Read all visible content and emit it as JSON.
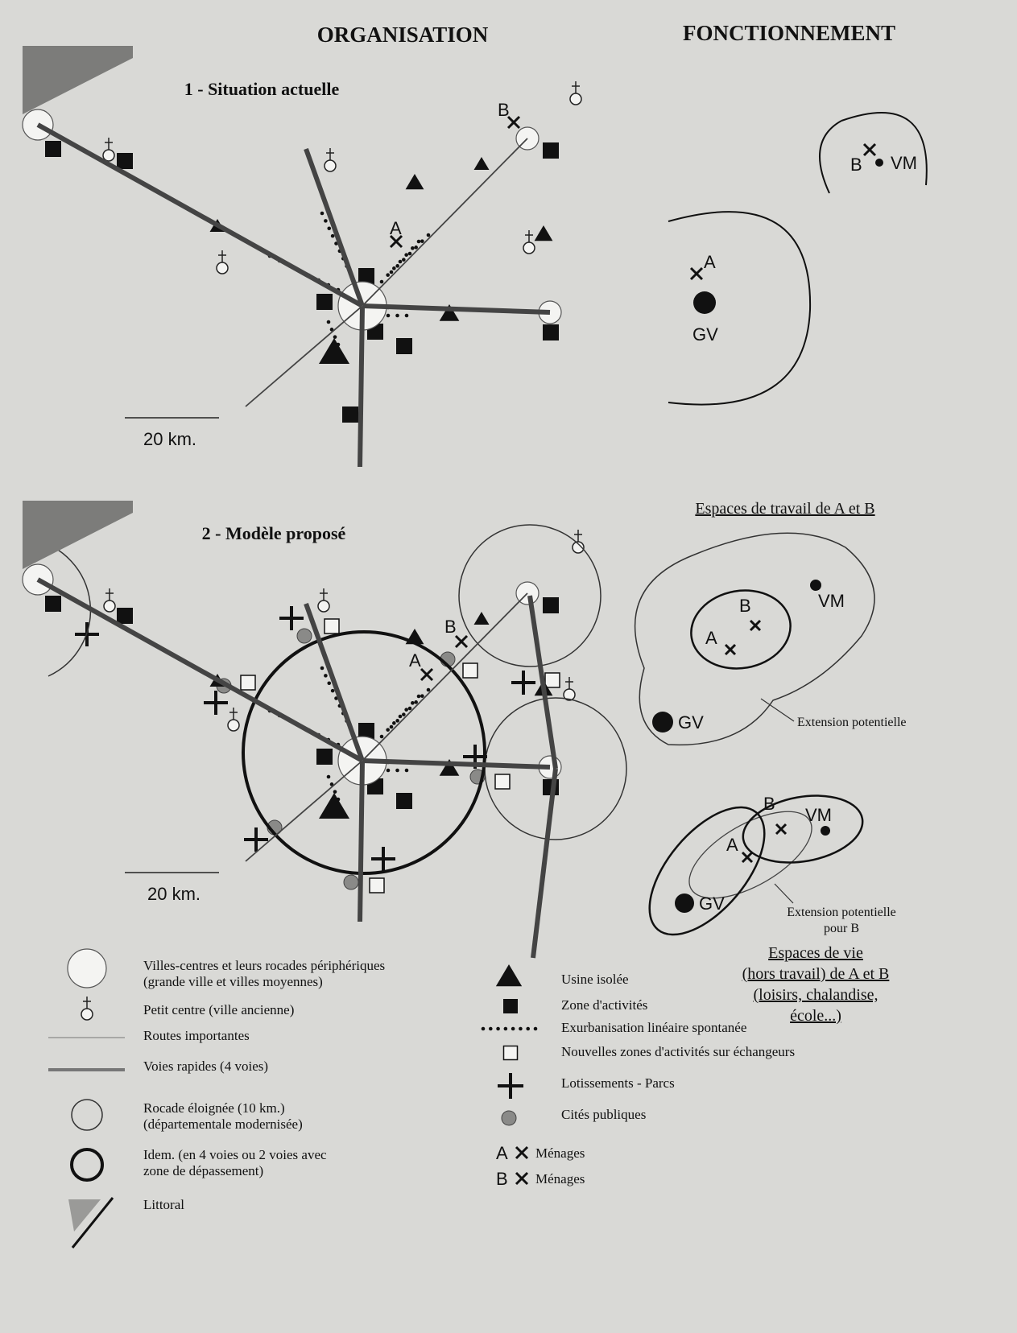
{
  "header": {
    "left": "ORGANISATION",
    "right": "FONCTIONNEMENT"
  },
  "map1": {
    "title": "1 - Situation actuelle",
    "scale": "20 km.",
    "labels": [
      "A",
      "B"
    ]
  },
  "function1": {
    "labels": [
      "B",
      "VM",
      "A",
      "GV"
    ]
  },
  "map2": {
    "title": "2 - Modèle proposé",
    "scale": "20 km.",
    "labels": [
      "A",
      "B"
    ]
  },
  "work_space": {
    "title": "Espaces de travail de A et B",
    "labels": [
      "A",
      "B",
      "VM",
      "GV"
    ],
    "note": "Extension potentielle"
  },
  "life_space": {
    "labels": [
      "B",
      "VM",
      "A",
      "GV"
    ],
    "note": [
      "Extension potentielle",
      "pour B"
    ],
    "title": [
      "Espaces de vie",
      "(hors travail) de A et B",
      "(loisirs, chalandise,",
      "école...)"
    ]
  },
  "legend_left": [
    [
      "Villes-centres et leurs rocades périphériques",
      "(grande ville et villes moyennes)"
    ],
    [
      "Petit centre (ville ancienne)"
    ],
    [
      "Routes importantes"
    ],
    [
      "Voies rapides (4 voies)"
    ],
    [
      "Rocade éloignée (10 km.)",
      "(départementale modernisée)"
    ],
    [
      "Idem. (en 4 voies ou 2 voies avec",
      "zone de dépassement)"
    ],
    [
      "Littoral"
    ]
  ],
  "legend_right": [
    {
      "label": "Usine isolée"
    },
    {
      "label": "Zone d'activités"
    },
    {
      "label": "Exurbanisation linéaire spontanée"
    },
    {
      "label": "Nouvelles zones d'activités sur échangeurs"
    },
    {
      "label": "Lotissements - Parcs"
    },
    {
      "label": "Cités publiques"
    },
    {
      "letter": "A",
      "label": "Ménages"
    },
    {
      "letter": "B",
      "label": "Ménages"
    }
  ]
}
